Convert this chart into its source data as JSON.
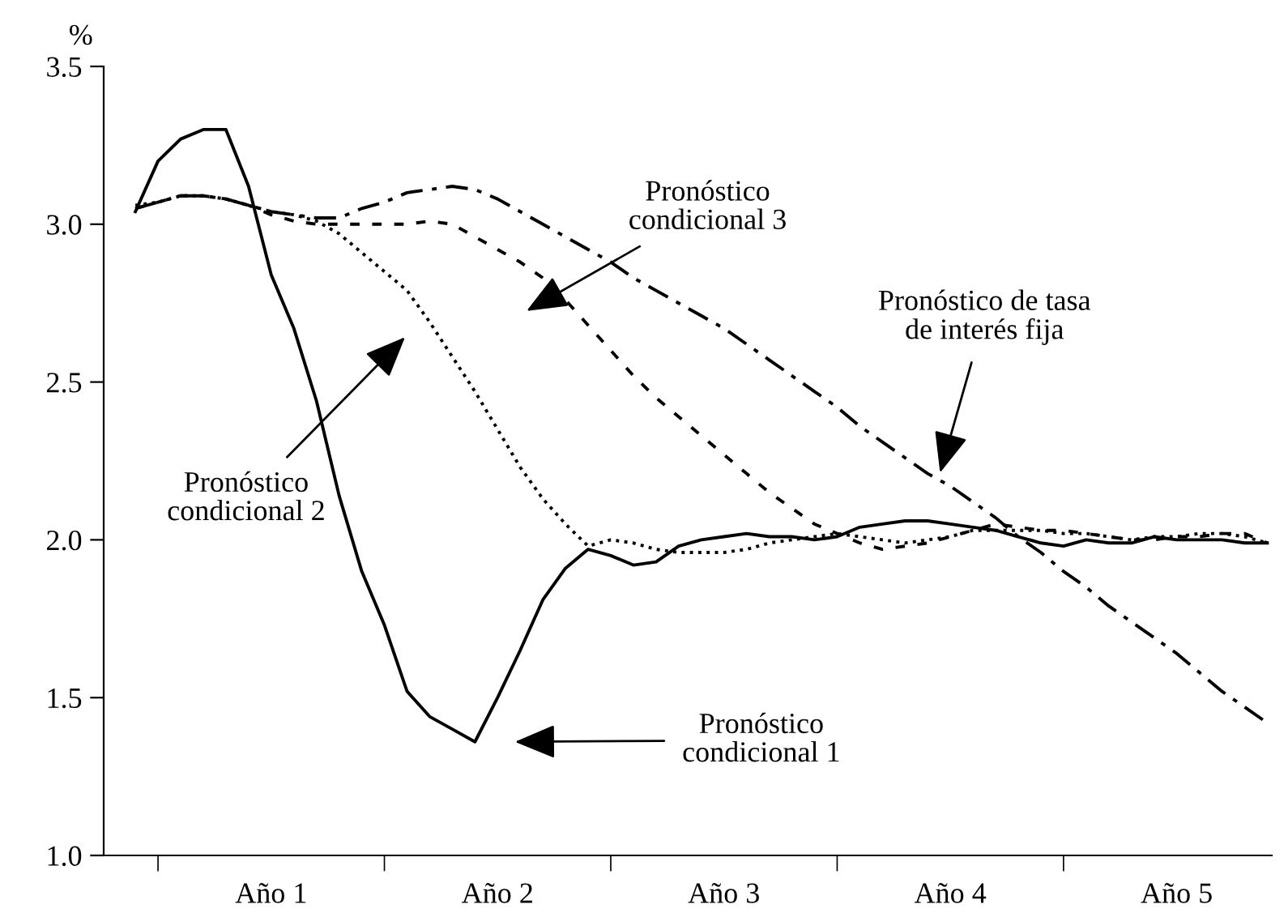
{
  "chart_data": {
    "type": "line",
    "ylabel": "%",
    "ylim": [
      1.0,
      3.5
    ],
    "yticks": [
      {
        "value": 1.0,
        "label": "1.0"
      },
      1.5,
      {
        "value": 2.0,
        "label": "2.0"
      },
      2.5,
      {
        "value": 3.0,
        "label": "3.0"
      },
      3.5
    ],
    "categories": [
      null,
      null,
      null,
      null,
      null,
      null,
      "Año 1",
      null,
      null,
      null,
      null,
      null,
      null,
      null,
      null,
      null,
      "Año 2",
      null,
      null,
      null,
      null,
      null,
      null,
      null,
      null,
      null,
      "Año 3",
      null,
      null,
      null,
      null,
      null,
      null,
      null,
      null,
      null,
      "Año 4",
      null,
      null,
      null,
      null,
      null,
      null,
      null,
      null,
      null,
      "Año 5",
      null,
      null,
      null,
      null
    ],
    "grid": false,
    "legend": false,
    "marker": "none",
    "series": [
      {
        "color": "#000000",
        "line_style": "solid",
        "values": [
          3.04,
          3.2,
          3.27,
          3.3,
          3.3,
          3.12,
          2.84,
          2.67,
          2.44,
          2.14,
          1.9,
          1.73,
          1.52,
          1.44,
          1.4,
          1.36,
          1.5,
          1.65,
          1.81,
          1.91,
          1.97,
          1.95,
          1.92,
          1.93,
          1.98,
          2.0,
          2.01,
          2.02,
          2.01,
          2.01,
          2.0,
          2.01,
          2.04,
          2.05,
          2.06,
          2.06,
          2.05,
          2.04,
          2.03,
          2.01,
          1.99,
          1.98,
          2.0,
          1.99,
          1.99,
          2.01,
          2.0,
          2.0,
          2.0,
          1.99,
          1.99
        ]
      },
      {
        "color": "#000000",
        "line_style": "dotted",
        "values": [
          3.06,
          3.07,
          3.09,
          3.09,
          3.08,
          3.06,
          3.04,
          3.03,
          3.01,
          2.97,
          2.91,
          2.85,
          2.79,
          2.69,
          2.58,
          2.47,
          2.35,
          2.23,
          2.13,
          2.05,
          1.98,
          2.0,
          1.99,
          1.97,
          1.96,
          1.96,
          1.96,
          1.97,
          1.99,
          2.0,
          2.01,
          2.02,
          2.01,
          2.0,
          1.99,
          2.0,
          2.01,
          2.03,
          2.03,
          2.03,
          2.03,
          2.02,
          2.02,
          2.01,
          2.0,
          2.01,
          2.01,
          2.02,
          2.02,
          2.01,
          1.99
        ]
      },
      {
        "color": "#000000",
        "line_style": "dashed",
        "values": [
          3.05,
          3.07,
          3.09,
          3.09,
          3.08,
          3.06,
          3.03,
          3.01,
          3.0,
          3.0,
          3.0,
          3.0,
          3.0,
          3.01,
          3.0,
          2.96,
          2.92,
          2.88,
          2.83,
          2.76,
          2.68,
          2.6,
          2.52,
          2.45,
          2.39,
          2.33,
          2.27,
          2.21,
          2.15,
          2.1,
          2.05,
          2.02,
          1.99,
          1.97,
          1.98,
          1.99,
          2.01,
          2.03,
          2.05,
          2.04,
          2.03,
          2.03,
          2.02,
          2.01,
          2.0,
          2.0,
          2.01,
          2.01,
          2.02,
          2.02,
          1.99
        ]
      },
      {
        "color": "#000000",
        "line_style": "dashdot",
        "values": [
          3.05,
          3.07,
          3.09,
          3.09,
          3.08,
          3.06,
          3.04,
          3.03,
          3.02,
          3.02,
          3.05,
          3.07,
          3.1,
          3.11,
          3.12,
          3.11,
          3.08,
          3.04,
          3.0,
          2.96,
          2.92,
          2.88,
          2.83,
          2.79,
          2.75,
          2.71,
          2.67,
          2.62,
          2.57,
          2.52,
          2.47,
          2.42,
          2.36,
          2.31,
          2.26,
          2.21,
          2.17,
          2.12,
          2.07,
          2.01,
          1.96,
          1.9,
          1.85,
          1.79,
          1.74,
          1.69,
          1.64,
          1.58,
          1.52,
          1.47,
          1.42
        ]
      }
    ],
    "annotations": [
      "Pronóstico\ncondicional 3",
      "Pronóstico de tasa\nde interés fija",
      "Pronóstico\ncondicional 2",
      "Pronóstico\ncondicional 1"
    ]
  }
}
